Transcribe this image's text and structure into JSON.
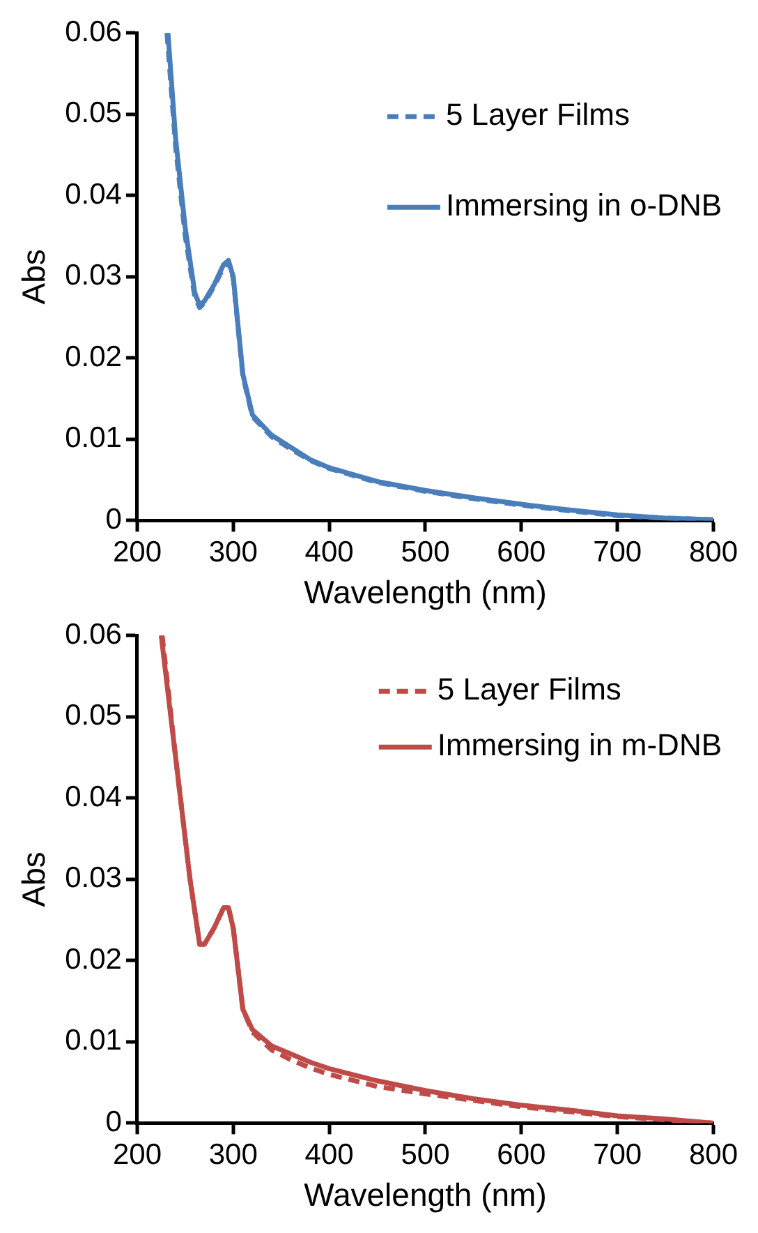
{
  "chart_data": [
    {
      "type": "line",
      "xlabel": "Wavelength (nm)",
      "ylabel": "Abs",
      "xlim": [
        200,
        800
      ],
      "xticks": [
        200,
        300,
        400,
        500,
        600,
        700,
        800
      ],
      "ylim": [
        0,
        0.06
      ],
      "yticks": [
        0,
        0.01,
        0.02,
        0.03,
        0.04,
        0.05,
        0.06
      ],
      "legend": "top right",
      "grid": false,
      "marker": "none",
      "series": [
        {
          "name": "5 Layer Films",
          "color": "#4a7ebb",
          "line_style": "dashed",
          "x": [
            231,
            240,
            250,
            260,
            265,
            270,
            280,
            290,
            295,
            300,
            305,
            310,
            320,
            340,
            360,
            380,
            400,
            450,
            500,
            550,
            600,
            650,
            700,
            750,
            800
          ],
          "values": [
            0.06,
            0.046,
            0.035,
            0.0275,
            0.0262,
            0.0268,
            0.0288,
            0.0312,
            0.0318,
            0.0298,
            0.0238,
            0.0178,
            0.0128,
            0.0103,
            0.0088,
            0.0074,
            0.0064,
            0.0047,
            0.0036,
            0.0027,
            0.0019,
            0.0012,
            0.0006,
            0.0003,
            0.0001
          ]
        },
        {
          "name": "Immersing in o-DNB",
          "color": "#4a7ebb",
          "line_style": "solid",
          "x": [
            232,
            240,
            250,
            260,
            265,
            270,
            280,
            290,
            295,
            300,
            305,
            310,
            320,
            340,
            360,
            380,
            400,
            450,
            500,
            550,
            600,
            650,
            700,
            750,
            800
          ],
          "values": [
            0.06,
            0.047,
            0.036,
            0.028,
            0.0265,
            0.027,
            0.029,
            0.0315,
            0.032,
            0.03,
            0.024,
            0.018,
            0.013,
            0.0105,
            0.009,
            0.0075,
            0.0065,
            0.0048,
            0.0037,
            0.0028,
            0.002,
            0.0013,
            0.0007,
            0.0003,
            0.0001
          ]
        }
      ]
    },
    {
      "type": "line",
      "xlabel": "Wavelength (nm)",
      "ylabel": "Abs",
      "xlim": [
        200,
        800
      ],
      "xticks": [
        200,
        300,
        400,
        500,
        600,
        700,
        800
      ],
      "ylim": [
        0,
        0.06
      ],
      "yticks": [
        0,
        0.01,
        0.02,
        0.03,
        0.04,
        0.05,
        0.06
      ],
      "legend": "top right",
      "grid": false,
      "marker": "none",
      "series": [
        {
          "name": "5 Layer Films",
          "color": "#be4b48",
          "line_style": "dashed",
          "x": [
            226,
            240,
            255,
            265,
            270,
            280,
            290,
            295,
            300,
            305,
            310,
            320,
            340,
            360,
            380,
            400,
            450,
            500,
            550,
            600,
            650,
            700,
            750,
            800
          ],
          "values": [
            0.06,
            0.045,
            0.03,
            0.022,
            0.022,
            0.024,
            0.0265,
            0.0265,
            0.024,
            0.019,
            0.014,
            0.0112,
            0.009,
            0.0078,
            0.0068,
            0.006,
            0.0045,
            0.0036,
            0.0028,
            0.002,
            0.0014,
            0.0008,
            0.0004,
            0
          ]
        },
        {
          "name": "Immersing in m-DNB",
          "color": "#be4b48",
          "line_style": "solid",
          "x": [
            225,
            240,
            255,
            265,
            270,
            280,
            290,
            295,
            300,
            305,
            310,
            320,
            340,
            360,
            380,
            400,
            450,
            500,
            550,
            600,
            650,
            700,
            750,
            800
          ],
          "values": [
            0.06,
            0.045,
            0.03,
            0.022,
            0.022,
            0.024,
            0.0265,
            0.0265,
            0.024,
            0.019,
            0.014,
            0.0115,
            0.0095,
            0.0085,
            0.0075,
            0.0067,
            0.0052,
            0.004,
            0.003,
            0.0022,
            0.0016,
            0.0009,
            0.0005,
            0
          ]
        }
      ]
    }
  ]
}
